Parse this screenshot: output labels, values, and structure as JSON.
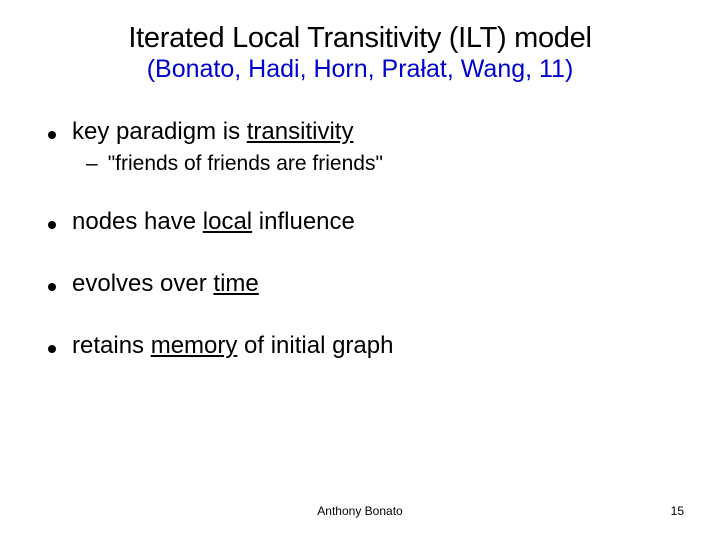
{
  "title": {
    "text": "Iterated Local Transitivity (ILT) model",
    "fontsize": 29,
    "color": "#000000"
  },
  "subtitle": {
    "text": "(Bonato, Hadi, Horn, Prałat, Wang, 11)",
    "fontsize": 25,
    "color": "#0000cc"
  },
  "bullets": {
    "dot_color": "#000000",
    "level1_fontsize": 24,
    "level2_fontsize": 21,
    "items": [
      {
        "pre": "key paradigm is ",
        "u": "transitivity",
        "post": "",
        "sub": [
          {
            "text": "\"friends of friends are friends\""
          }
        ]
      },
      {
        "pre": "nodes have ",
        "u": "local",
        "post": " influence"
      },
      {
        "pre": "evolves over ",
        "u": "time",
        "post": ""
      },
      {
        "pre": "retains ",
        "u": "memory",
        "post": " of initial graph"
      }
    ]
  },
  "footer": {
    "author": "Anthony Bonato",
    "page": "15",
    "fontsize": 12,
    "color": "#000000"
  },
  "background_color": "#ffffff"
}
